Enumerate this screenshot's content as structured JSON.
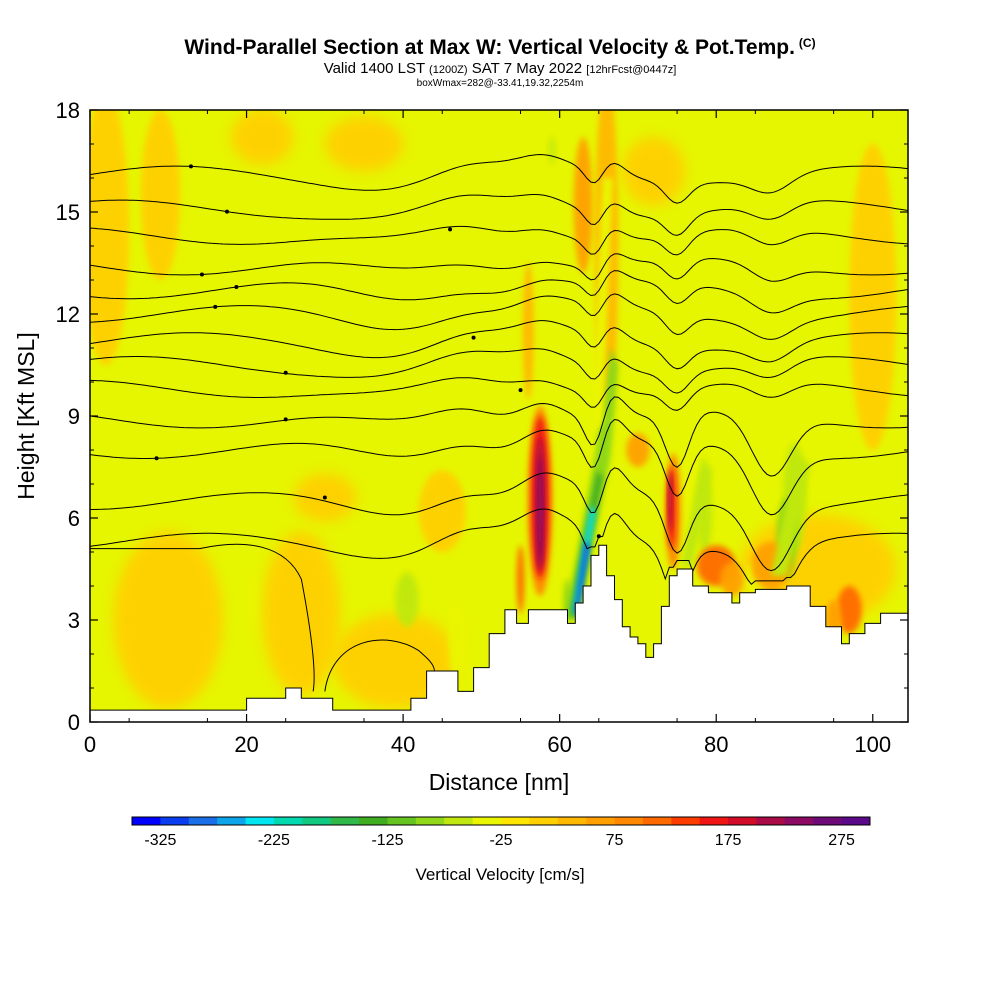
{
  "header": {
    "title": "Wind-Parallel Section at Max W: Vertical Velocity & Pot.Temp.",
    "copyright": "(C)",
    "valid_prefix": "Valid 1400 LST",
    "valid_utc": "(1200Z)",
    "valid_date": "SAT 7 May 2022",
    "forecast": "[12hrFcst@0447z]",
    "box_info": "boxWmax=282@-33.41,19.32,2254m"
  },
  "chart_data": {
    "type": "heatmap",
    "xlabel": "Distance [nm]",
    "ylabel": "Height [Kft MSL]",
    "xlim": [
      0,
      104.5
    ],
    "ylim": [
      0,
      18
    ],
    "xticks": [
      0,
      20,
      40,
      60,
      80,
      100
    ],
    "yticks": [
      0,
      3,
      6,
      9,
      12,
      15,
      18
    ],
    "colorbar": {
      "label": "Vertical Velocity [cm/s]",
      "min": -350,
      "max": 300,
      "step": 25,
      "ticks": [
        -325,
        -225,
        -125,
        -25,
        75,
        175,
        275
      ],
      "colors": [
        "#0000ff",
        "#0a3cf0",
        "#1a6ee8",
        "#0ea4ea",
        "#00e6f0",
        "#00d8b0",
        "#10c880",
        "#30b848",
        "#40ac20",
        "#66c420",
        "#90d818",
        "#c0e810",
        "#eaf500",
        "#ffe600",
        "#ffd000",
        "#ffb800",
        "#ffa000",
        "#ff8800",
        "#ff6a00",
        "#ff3c00",
        "#f01414",
        "#d20c28",
        "#aa0a48",
        "#8a0a64",
        "#6e0a78",
        "#5a0a88"
      ]
    },
    "terrain_profile": [
      [
        0,
        0.35
      ],
      [
        20,
        0.35
      ],
      [
        20,
        0.7
      ],
      [
        25,
        0.7
      ],
      [
        25,
        1.0
      ],
      [
        27,
        1.0
      ],
      [
        27,
        0.7
      ],
      [
        31,
        0.7
      ],
      [
        31,
        0.35
      ],
      [
        41,
        0.35
      ],
      [
        41,
        0.7
      ],
      [
        43,
        0.7
      ],
      [
        43,
        1.5
      ],
      [
        47,
        1.5
      ],
      [
        47,
        0.9
      ],
      [
        49,
        0.9
      ],
      [
        49,
        1.6
      ],
      [
        51,
        1.6
      ],
      [
        51,
        2.6
      ],
      [
        53,
        2.6
      ],
      [
        53,
        3.3
      ],
      [
        54.5,
        3.3
      ],
      [
        54.5,
        2.9
      ],
      [
        56,
        2.9
      ],
      [
        56,
        3.3
      ],
      [
        61,
        3.3
      ],
      [
        61,
        2.9
      ],
      [
        62,
        2.9
      ],
      [
        62,
        3.5
      ],
      [
        63,
        3.5
      ],
      [
        63,
        4.0
      ],
      [
        64,
        4.0
      ],
      [
        64,
        4.9
      ],
      [
        65,
        4.9
      ],
      [
        65,
        5.2
      ],
      [
        66,
        5.2
      ],
      [
        66,
        4.3
      ],
      [
        67,
        4.3
      ],
      [
        67,
        3.6
      ],
      [
        68,
        3.6
      ],
      [
        68,
        2.8
      ],
      [
        69,
        2.8
      ],
      [
        69,
        2.5
      ],
      [
        70,
        2.5
      ],
      [
        70,
        2.3
      ],
      [
        71,
        2.3
      ],
      [
        71,
        1.9
      ],
      [
        72,
        1.9
      ],
      [
        72,
        2.3
      ],
      [
        73,
        2.3
      ],
      [
        73,
        3.4
      ],
      [
        74,
        3.4
      ],
      [
        74,
        4.3
      ],
      [
        75,
        4.3
      ],
      [
        75,
        4.5
      ],
      [
        77,
        4.5
      ],
      [
        77,
        4.0
      ],
      [
        79,
        4.0
      ],
      [
        79,
        3.8
      ],
      [
        82,
        3.8
      ],
      [
        82,
        3.5
      ],
      [
        83,
        3.5
      ],
      [
        83,
        3.8
      ],
      [
        85,
        3.8
      ],
      [
        85,
        3.9
      ],
      [
        87,
        3.9
      ],
      [
        87,
        3.9
      ],
      [
        89,
        3.9
      ],
      [
        89,
        4.0
      ],
      [
        92,
        4.0
      ],
      [
        92,
        3.4
      ],
      [
        94,
        3.4
      ],
      [
        94,
        2.8
      ],
      [
        96,
        2.8
      ],
      [
        96,
        2.3
      ],
      [
        97,
        2.3
      ],
      [
        97,
        2.6
      ],
      [
        99,
        2.6
      ],
      [
        99,
        2.9
      ],
      [
        101,
        2.9
      ],
      [
        101,
        3.2
      ],
      [
        104.5,
        3.2
      ]
    ],
    "isentropes": [
      {
        "label_x": 12.9,
        "base": 16.1
      },
      {
        "label_x": 17.5,
        "base": 15.1
      },
      {
        "label_x": 46.0,
        "base": 14.3
      },
      {
        "label_x": 14.3,
        "base": 13.4
      },
      {
        "label_x": 18.7,
        "base": 12.7
      },
      {
        "label_x": 16.0,
        "base": 12.0
      },
      {
        "label_x": 49.0,
        "base": 11.2
      },
      {
        "label_x": 25.0,
        "base": 10.5
      },
      {
        "label_x": 55.0,
        "base": 9.8
      },
      {
        "label_x": 25.0,
        "base": 8.9
      },
      {
        "label_x": 8.5,
        "base": 8.0
      },
      {
        "label_x": 30.0,
        "base": 6.5
      },
      {
        "label_x": 65.0,
        "base": 5.3
      }
    ]
  }
}
